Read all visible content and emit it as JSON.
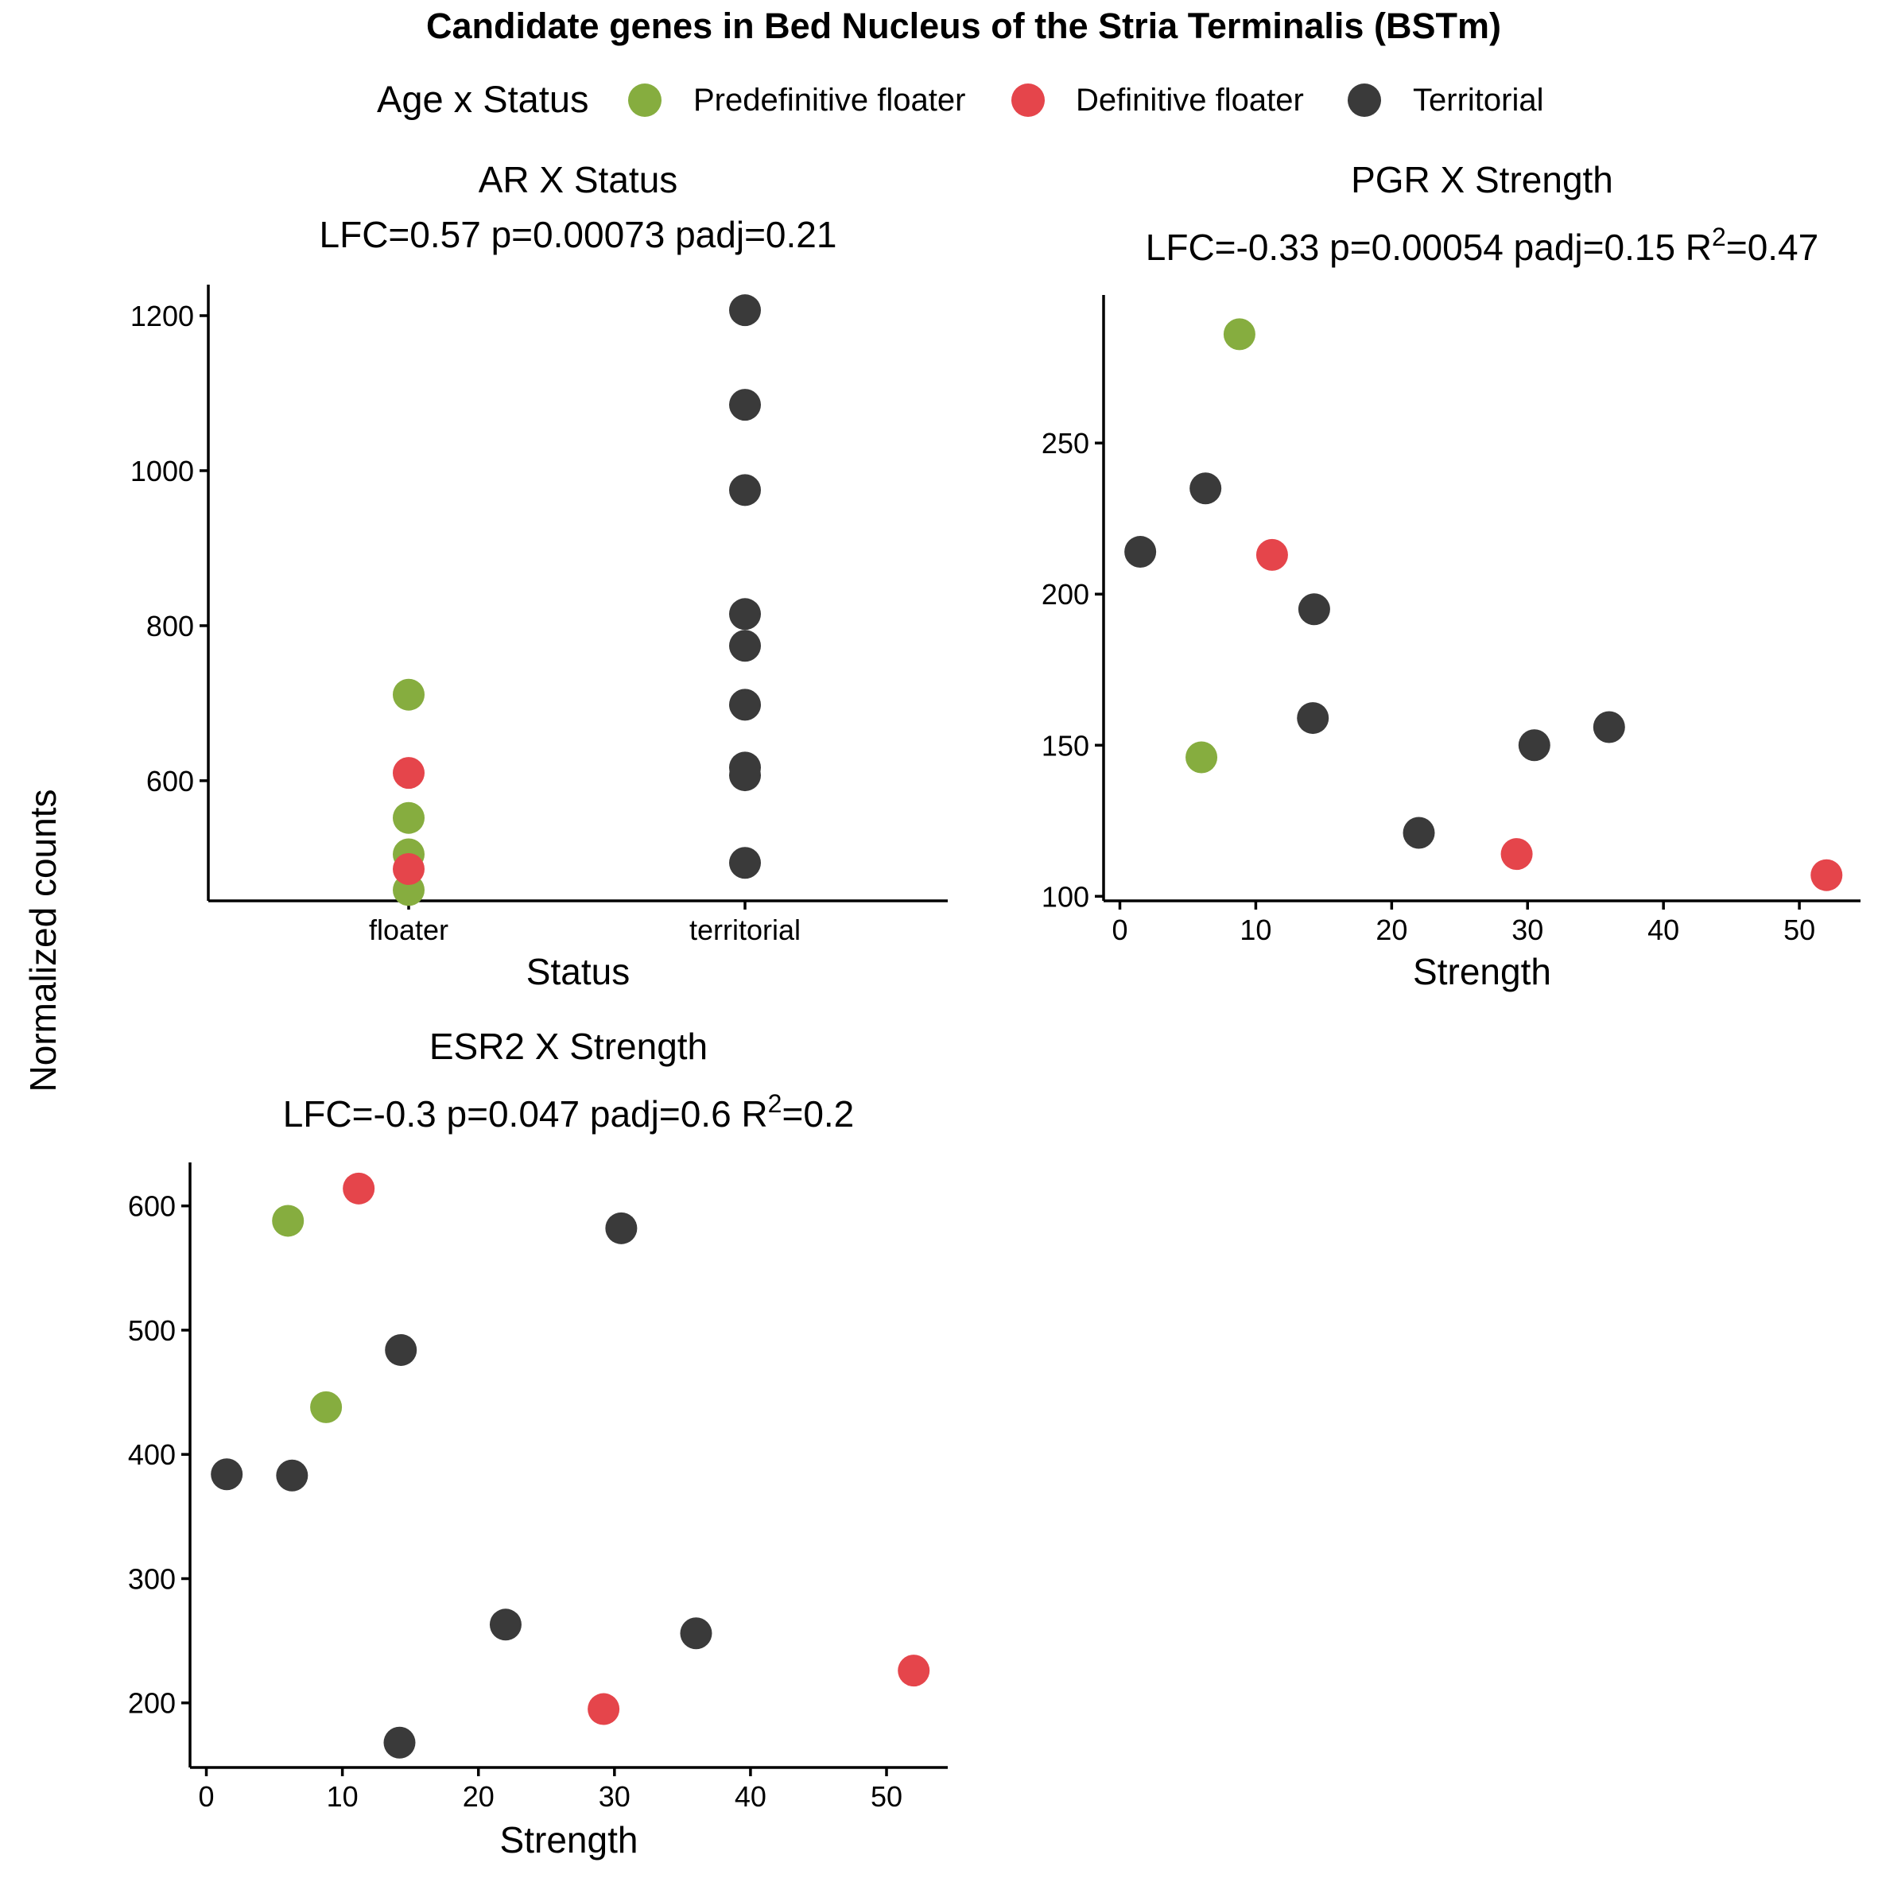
{
  "title": "Candidate genes in Bed Nucleus of the Stria Terminalis (BSTm)",
  "legend": {
    "title": "Age x Status",
    "items": [
      {
        "label": "Predefinitive floater",
        "color": "#86ad3f"
      },
      {
        "label": "Definitive floater",
        "color": "#e5454b"
      },
      {
        "label": "Territorial",
        "color": "#3a3a3a"
      }
    ]
  },
  "shared_ylabel": "Normalized counts",
  "chart_data": [
    {
      "type": "scatter",
      "title": "AR X Status",
      "subtitle": "LFC=0.57 p=0.00073 padj=0.21",
      "subtitle_sup": "",
      "subtitle_after": "",
      "xlabel": "Status",
      "ylabel": "",
      "categories": [
        "floater",
        "territorial"
      ],
      "ylim": [
        445,
        1240
      ],
      "yticks": [
        600,
        800,
        1000,
        1200
      ],
      "series": [
        {
          "name": "Predefinitive floater",
          "color": "#86ad3f",
          "points": [
            [
              "floater",
              711
            ],
            [
              "floater",
              552
            ],
            [
              "floater",
              505
            ],
            [
              "floater",
              459
            ]
          ]
        },
        {
          "name": "Definitive floater",
          "color": "#e5454b",
          "points": [
            [
              "floater",
              610
            ],
            [
              "floater",
              486
            ]
          ]
        },
        {
          "name": "Territorial",
          "color": "#3a3a3a",
          "points": [
            [
              "territorial",
              1207
            ],
            [
              "territorial",
              1085
            ],
            [
              "territorial",
              975
            ],
            [
              "territorial",
              815
            ],
            [
              "territorial",
              774
            ],
            [
              "territorial",
              698
            ],
            [
              "territorial",
              617
            ],
            [
              "territorial",
              607
            ],
            [
              "territorial",
              494
            ]
          ]
        }
      ]
    },
    {
      "type": "scatter",
      "title": "PGR X Strength",
      "subtitle": "LFC=-0.33 p=0.00054 padj=0.15 R",
      "subtitle_sup": "2",
      "subtitle_after": "=0.47",
      "xlabel": "Strength",
      "ylabel": "",
      "xlim": [
        -1.2,
        54.5
      ],
      "xticks": [
        0,
        10,
        20,
        30,
        40,
        50
      ],
      "ylim": [
        98.5,
        299
      ],
      "yticks": [
        100,
        150,
        200,
        250
      ],
      "series": [
        {
          "name": "Predefinitive floater",
          "color": "#86ad3f",
          "points": [
            [
              8.8,
              286
            ],
            [
              6.0,
              146
            ]
          ]
        },
        {
          "name": "Definitive floater",
          "color": "#e5454b",
          "points": [
            [
              11.2,
              213
            ],
            [
              29.2,
              114
            ],
            [
              52.0,
              107
            ]
          ]
        },
        {
          "name": "Territorial",
          "color": "#3a3a3a",
          "points": [
            [
              1.5,
              214
            ],
            [
              6.3,
              235
            ],
            [
              14.3,
              195
            ],
            [
              14.2,
              159
            ],
            [
              22.0,
              121
            ],
            [
              30.5,
              150
            ],
            [
              36.0,
              156
            ]
          ]
        }
      ]
    },
    {
      "type": "scatter",
      "title": "ESR2 X Strength",
      "subtitle": "LFC=-0.3 p=0.047 padj=0.6 R",
      "subtitle_sup": "2",
      "subtitle_after": "=0.2",
      "xlabel": "Strength",
      "ylabel": "",
      "xlim": [
        -1.2,
        54.5
      ],
      "xticks": [
        0,
        10,
        20,
        30,
        40,
        50
      ],
      "ylim": [
        148,
        635
      ],
      "yticks": [
        200,
        300,
        400,
        500,
        600
      ],
      "series": [
        {
          "name": "Predefinitive floater",
          "color": "#86ad3f",
          "points": [
            [
              6.0,
              588
            ],
            [
              8.8,
              438
            ]
          ]
        },
        {
          "name": "Definitive floater",
          "color": "#e5454b",
          "points": [
            [
              11.2,
              614
            ],
            [
              29.2,
              195
            ],
            [
              52.0,
              226
            ]
          ]
        },
        {
          "name": "Territorial",
          "color": "#3a3a3a",
          "points": [
            [
              30.5,
              582
            ],
            [
              14.3,
              484
            ],
            [
              1.5,
              384
            ],
            [
              6.3,
              383
            ],
            [
              22.0,
              263
            ],
            [
              36.0,
              256
            ],
            [
              14.2,
              168
            ]
          ]
        }
      ]
    }
  ]
}
